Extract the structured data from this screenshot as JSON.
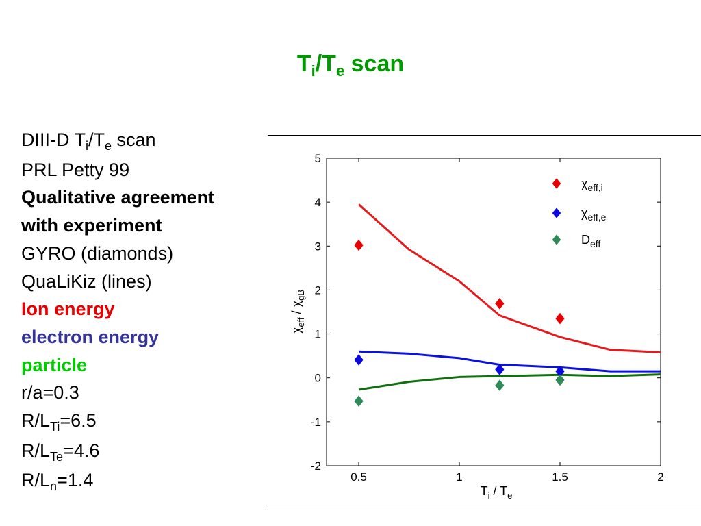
{
  "slide": {
    "title": {
      "main": "T",
      "sub1": "i",
      "slash": "/T",
      "sub2": "e",
      "rest": " scan"
    }
  },
  "bullets": [
    {
      "text": "DIII-D T",
      "sub": "i",
      "text2": "/T",
      "sub2": "e",
      "text3": " scan"
    },
    {
      "text": "PRL Petty 99"
    },
    {
      "text": "Qualitative agreement"
    },
    {
      "text": "with experiment"
    },
    {
      "text": "GYRO (diamonds)"
    },
    {
      "text": "QuaLiKiz (lines)"
    },
    {
      "text": "Ion energy",
      "color": "#e60000"
    },
    {
      "text": "electron energy",
      "color": "#333399"
    },
    {
      "text": "particle",
      "color": "#00cc00"
    },
    {
      "text": "r/a=0.3"
    },
    {
      "text": "R/L",
      "sub": "Ti",
      "text2": "=6.5"
    },
    {
      "text": "R/L",
      "sub": "Te",
      "text2": "=4.6"
    },
    {
      "text": "R/L",
      "sub": "n",
      "text2": "=1.4"
    }
  ],
  "chart_data": {
    "type": "line",
    "xlabel": {
      "main": "T",
      "sub": "i",
      "mid": " / T",
      "sub2": "e"
    },
    "ylabel": {
      "main": "χ",
      "sub": "eff",
      "mid": " / χ",
      "sub2": "gB"
    },
    "xlim": [
      0.34,
      2.0
    ],
    "ylim": [
      -2,
      5
    ],
    "xticks": [
      0.5,
      1,
      1.5,
      2
    ],
    "xtick_labels": [
      "0.5",
      "1",
      "1.5",
      "2"
    ],
    "yticks": [
      -2,
      -1,
      0,
      1,
      2,
      3,
      4,
      5
    ],
    "ytick_labels": [
      "-2",
      "-1",
      "0",
      "1",
      "2",
      "3",
      "4",
      "5"
    ],
    "grid": false,
    "legend_position": "top-right",
    "line_series": [
      {
        "color": "#e41a1c",
        "x": [
          0.5,
          0.75,
          1.0,
          1.2,
          1.5,
          1.75,
          2.0
        ],
        "y": [
          3.95,
          2.92,
          2.2,
          1.42,
          0.93,
          0.64,
          0.58
        ]
      },
      {
        "color": "#0a12e0",
        "x": [
          0.5,
          0.75,
          1.0,
          1.2,
          1.5,
          1.75,
          2.0
        ],
        "y": [
          0.6,
          0.55,
          0.45,
          0.3,
          0.24,
          0.15,
          0.15
        ]
      },
      {
        "color": "#107010",
        "x": [
          0.5,
          0.75,
          1.0,
          1.2,
          1.5,
          1.75,
          2.0
        ],
        "y": [
          -0.27,
          -0.09,
          0.02,
          0.04,
          0.07,
          0.04,
          0.08
        ]
      }
    ],
    "marker_series": [
      {
        "name": "χ",
        "sub": "eff,i",
        "color": "#e80000",
        "x": [
          0.5,
          1.2,
          1.5
        ],
        "y": [
          3.02,
          1.69,
          1.35
        ]
      },
      {
        "name": "χ",
        "sub": "eff,e",
        "color": "#0a0ae0",
        "x": [
          0.5,
          1.2,
          1.5
        ],
        "y": [
          0.41,
          0.19,
          0.15
        ]
      },
      {
        "name": "D",
        "sub": "eff",
        "color": "#2e8b57",
        "x": [
          0.5,
          1.2,
          1.5
        ],
        "y": [
          -0.53,
          -0.17,
          -0.05
        ]
      }
    ]
  }
}
